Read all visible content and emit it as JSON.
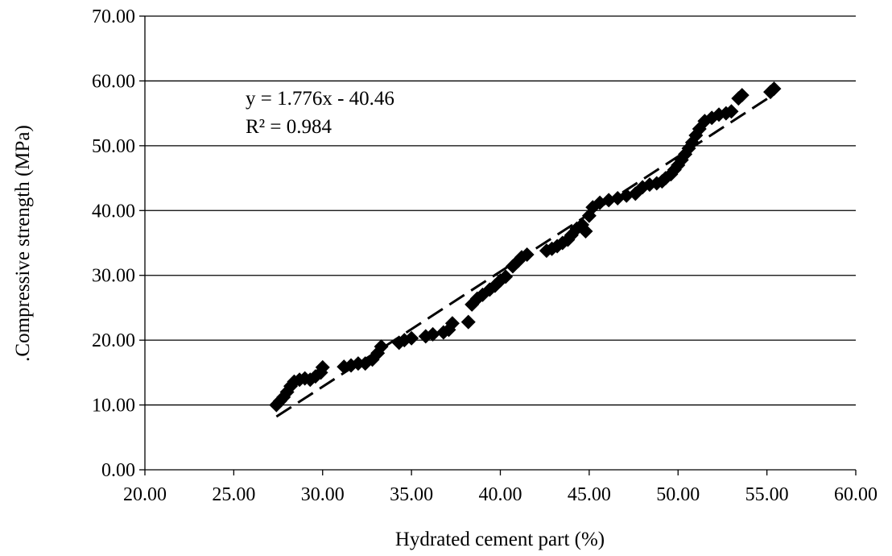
{
  "chart_data": {
    "type": "scatter",
    "title": "",
    "xlabel": "Hydrated cement part (%)",
    "ylabel": ".Compressive strength (MPa)",
    "xlim": [
      20,
      60
    ],
    "ylim": [
      0,
      70
    ],
    "x_ticks": [
      "20.00",
      "25.00",
      "30.00",
      "35.00",
      "40.00",
      "45.00",
      "50.00",
      "55.00",
      "60.00"
    ],
    "y_ticks": [
      "0.00",
      "10.00",
      "20.00",
      "30.00",
      "40.00",
      "50.00",
      "60.00",
      "70.00"
    ],
    "grid": "horizontal",
    "marker": "diamond",
    "marker_color": "#000000",
    "trendline": {
      "style": "dashed",
      "slope": 1.776,
      "intercept": -40.46,
      "equation_label": "y = 1.776x - 40.46",
      "r2_label": "R² = 0.984"
    },
    "series": [
      {
        "x": [
          27.4,
          27.6,
          27.8,
          28.0,
          28.2,
          28.4,
          28.7,
          29.0,
          29.3,
          29.6,
          29.9,
          30.0,
          31.2,
          31.6,
          32.0,
          32.4,
          32.8,
          33.1,
          33.3,
          34.3,
          34.6,
          35.0,
          35.8,
          36.2,
          36.8,
          37.1,
          37.3,
          38.2,
          38.4,
          38.7,
          39.0,
          39.4,
          39.7,
          40.0,
          40.3,
          40.7,
          41.0,
          41.2,
          41.5,
          42.6,
          42.9,
          43.2,
          43.5,
          43.8,
          44.0,
          44.3,
          44.6,
          44.8,
          45.0,
          45.2,
          45.6,
          46.1,
          46.6,
          47.1,
          47.6,
          48.0,
          48.4,
          48.8,
          49.1,
          49.3,
          49.6,
          49.8,
          50.0,
          50.2,
          50.4,
          50.6,
          50.8,
          51.0,
          51.2,
          51.5,
          51.9,
          52.3,
          52.7,
          53.0,
          53.4,
          53.6,
          55.2,
          55.4
        ],
        "y": [
          10.0,
          10.6,
          11.2,
          12.0,
          12.9,
          13.6,
          13.9,
          14.1,
          13.9,
          14.4,
          15.0,
          15.8,
          15.9,
          16.1,
          16.4,
          16.4,
          17.0,
          18.0,
          19.0,
          19.6,
          20.0,
          20.3,
          20.6,
          20.9,
          21.2,
          21.6,
          22.6,
          22.8,
          25.5,
          26.4,
          27.0,
          27.8,
          28.4,
          29.2,
          29.8,
          31.4,
          32.2,
          32.8,
          33.2,
          33.8,
          34.1,
          34.5,
          35.0,
          35.5,
          36.2,
          37.2,
          37.8,
          36.8,
          39.2,
          40.5,
          41.2,
          41.6,
          41.9,
          42.3,
          42.6,
          43.6,
          44.0,
          44.2,
          44.5,
          45.0,
          45.6,
          46.3,
          47.0,
          47.8,
          48.7,
          49.6,
          50.5,
          51.6,
          52.6,
          53.8,
          54.3,
          54.8,
          55.0,
          55.3,
          57.3,
          57.8,
          58.3,
          58.8
        ]
      }
    ]
  }
}
